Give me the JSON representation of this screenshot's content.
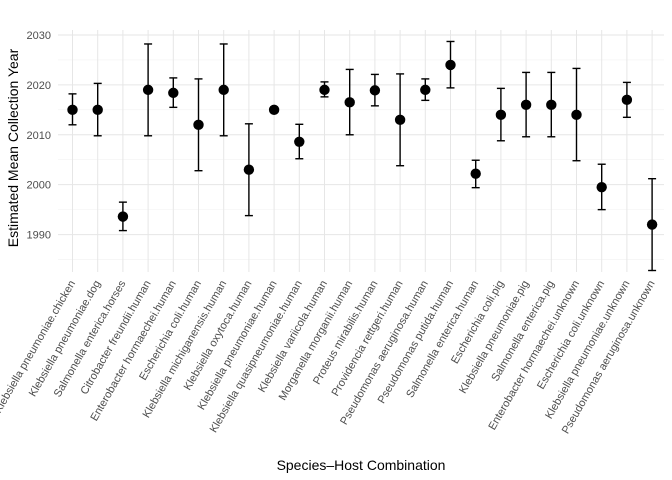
{
  "chart_data": {
    "type": "scatter",
    "title": "",
    "xlabel": "Species–Host Combination",
    "ylabel": "Estimated Mean Collection Year",
    "ylim": [
      1982.5,
      2031
    ],
    "yticks": [
      1990,
      2000,
      2010,
      2020,
      2030
    ],
    "grid": true,
    "error_bars": true,
    "point_color": "#000000",
    "categories": [
      "Klebsiella pneumoniae.chicken",
      "Klebsiella pneumoniae.dog",
      "Salmonella enterica.horses",
      "Citrobacter freundii.human",
      "Enterobacter hormaechei.human",
      "Escherichia coli.human",
      "Klebsiella michiganensis.human",
      "Klebsiella oxytoca.human",
      "Klebsiella pneumoniae.human",
      "Klebsiella quasipneumoniae.human",
      "Klebsiella variicola.human",
      "Morganella morganii.human",
      "Proteus mirabilis.human",
      "Providencia rettgeri.human",
      "Pseudomonas aeruginosa.human",
      "Pseudomonas putida.human",
      "Salmonella enterica.human",
      "Escherichia coli.pig",
      "Klebsiella pneumoniae.pig",
      "Salmonella enterica.pig",
      "Enterobacter hormaechei.unknown",
      "Escherichia coli.unknown",
      "Klebsiella pneumoniae.unknown",
      "Pseudomonas aeruginosa.unknown"
    ],
    "values": [
      2015.0,
      2015.0,
      1993.6,
      2019.0,
      2018.4,
      2012.0,
      2019.0,
      2003.0,
      2015.0,
      2008.6,
      2019.0,
      2016.5,
      2018.9,
      2013.0,
      2019.0,
      2024.0,
      2002.2,
      2014.0,
      2016.0,
      2016.0,
      2014.0,
      1999.5,
      2017.0,
      1992.0
    ],
    "lower": [
      2012.0,
      2009.8,
      1990.8,
      2009.8,
      2015.5,
      2002.8,
      2009.8,
      1993.8,
      2015.0,
      2005.2,
      2017.6,
      2010.0,
      2015.8,
      2003.8,
      2016.9,
      2019.4,
      1999.4,
      2008.8,
      2009.6,
      2009.6,
      2004.8,
      1995.0,
      2013.5,
      1982.8
    ],
    "upper": [
      2018.2,
      2020.3,
      1996.5,
      2028.2,
      2021.4,
      2021.2,
      2028.2,
      2012.2,
      2015.0,
      2012.1,
      2020.6,
      2023.1,
      2022.1,
      2022.2,
      2021.2,
      2028.7,
      2004.9,
      2019.3,
      2022.5,
      2022.5,
      2023.3,
      2004.1,
      2020.5,
      2001.2
    ]
  }
}
